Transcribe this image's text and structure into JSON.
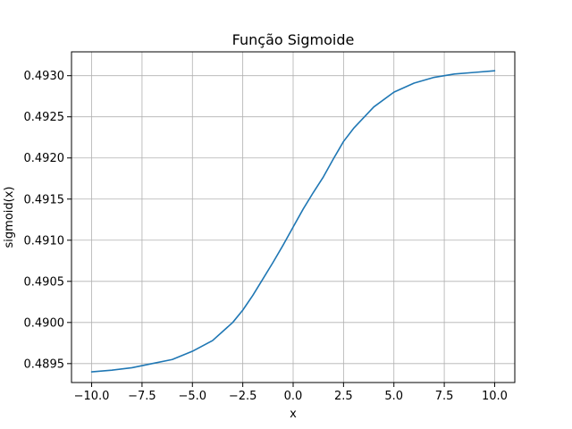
{
  "chart_data": {
    "type": "line",
    "title": "Função Sigmoide",
    "xlabel": "x",
    "ylabel": "sigmoid(x)",
    "xlim": [
      -11,
      11
    ],
    "ylim": [
      0.48927,
      0.49329
    ],
    "grid": true,
    "x_ticks": [
      -10,
      -7.5,
      -5,
      -2.5,
      0,
      2.5,
      5,
      7.5,
      10
    ],
    "x_tick_labels": [
      "−10.0",
      "−7.5",
      "−5.0",
      "−2.5",
      "0.0",
      "2.5",
      "5.0",
      "7.5",
      "10.0"
    ],
    "y_ticks": [
      0.4895,
      0.49,
      0.4905,
      0.491,
      0.4915,
      0.492,
      0.4925,
      0.493
    ],
    "y_tick_labels": [
      "0.4895",
      "0.4900",
      "0.4905",
      "0.4910",
      "0.4915",
      "0.4920",
      "0.4925",
      "0.4930"
    ],
    "series": [
      {
        "color": "#1f77b4",
        "x": [
          -10,
          -9,
          -8,
          -7,
          -6,
          -5,
          -4,
          -3,
          -2.5,
          -2,
          -1.5,
          -1,
          -0.5,
          0,
          0.5,
          1,
          1.5,
          2,
          2.5,
          3,
          4,
          5,
          6,
          7,
          8,
          9,
          10
        ],
        "y": [
          0.4894,
          0.48942,
          0.48945,
          0.4895,
          0.48955,
          0.48965,
          0.48978,
          0.49,
          0.49015,
          0.49033,
          0.49053,
          0.49073,
          0.49094,
          0.49116,
          0.49138,
          0.49158,
          0.49177,
          0.49199,
          0.4922,
          0.49236,
          0.49262,
          0.4928,
          0.49291,
          0.49298,
          0.49302,
          0.49304,
          0.49306
        ]
      }
    ]
  }
}
